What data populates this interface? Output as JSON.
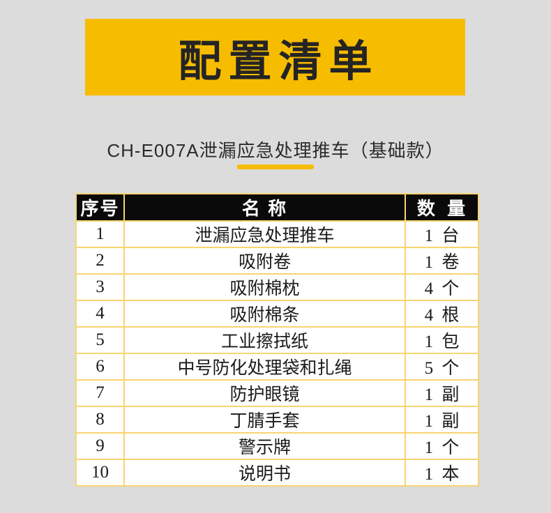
{
  "header": {
    "title": "配置清单",
    "subtitle": "CH-E007A泄漏应急处理推车（基础款）"
  },
  "colors": {
    "page_background": "#DCDCDC",
    "banner_yellow": "#F6BC00",
    "table_border_gold": "#F8D470",
    "header_black": "#0A0A0A",
    "title_text": "#242424",
    "body_text": "#1A1A1A"
  },
  "table": {
    "columns": [
      "序号",
      "名 称",
      "数 量"
    ],
    "rows": [
      {
        "no": "1",
        "name": "泄漏应急处理推车",
        "qty": "1 台"
      },
      {
        "no": "2",
        "name": "吸附卷",
        "qty": "1 卷"
      },
      {
        "no": "3",
        "name": "吸附棉枕",
        "qty": "4 个"
      },
      {
        "no": "4",
        "name": "吸附棉条",
        "qty": "4 根"
      },
      {
        "no": "5",
        "name": "工业擦拭纸",
        "qty": "1 包"
      },
      {
        "no": "6",
        "name": "中号防化处理袋和扎绳",
        "qty": "5 个"
      },
      {
        "no": "7",
        "name": "防护眼镜",
        "qty": "1 副"
      },
      {
        "no": "8",
        "name": "丁腈手套",
        "qty": "1 副"
      },
      {
        "no": "9",
        "name": "警示牌",
        "qty": "1 个"
      },
      {
        "no": "10",
        "name": "说明书",
        "qty": "1 本"
      }
    ]
  }
}
